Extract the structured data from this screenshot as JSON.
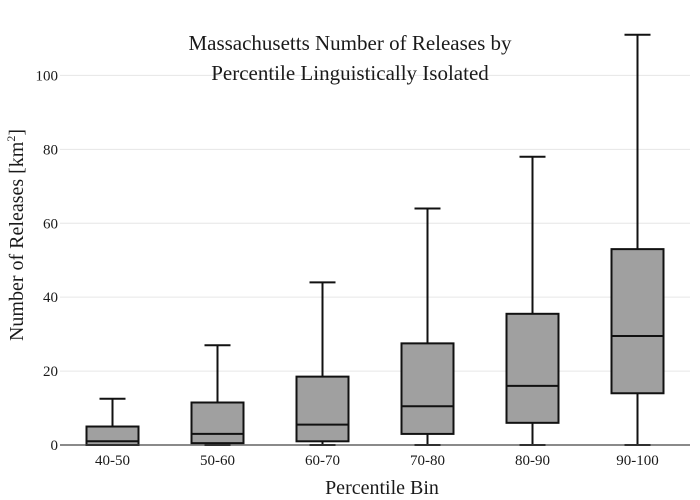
{
  "chart_data": {
    "type": "box",
    "title": "Massachusetts Number of Releases by",
    "title_line2": "Percentile Linguistically Isolated",
    "xlabel": "Percentile Bin",
    "ylabel": "Number of Releases  [km",
    "ylabel_sup": "2",
    "ylabel_close": "]",
    "ylim": [
      0,
      115
    ],
    "yticks": [
      0,
      20,
      40,
      60,
      80,
      100
    ],
    "grid": true,
    "categories": [
      "40-50",
      "50-60",
      "60-70",
      "70-80",
      "80-90",
      "90-100"
    ],
    "box_color": "#a0a0a0",
    "series": [
      {
        "values": [
          {
            "min": 0,
            "q1": 0,
            "median": 1,
            "q3": 5,
            "max": 12.5
          },
          {
            "min": 0,
            "q1": 0.5,
            "median": 3,
            "q3": 11.5,
            "max": 27
          },
          {
            "min": 0,
            "q1": 1,
            "median": 5.5,
            "q3": 18.5,
            "max": 44
          },
          {
            "min": 0,
            "q1": 3,
            "median": 10.5,
            "q3": 27.5,
            "max": 64
          },
          {
            "min": 0,
            "q1": 6,
            "median": 16,
            "q3": 35.5,
            "max": 78
          },
          {
            "min": 0,
            "q1": 14,
            "median": 29.5,
            "q3": 53,
            "max": 111
          }
        ]
      }
    ]
  }
}
